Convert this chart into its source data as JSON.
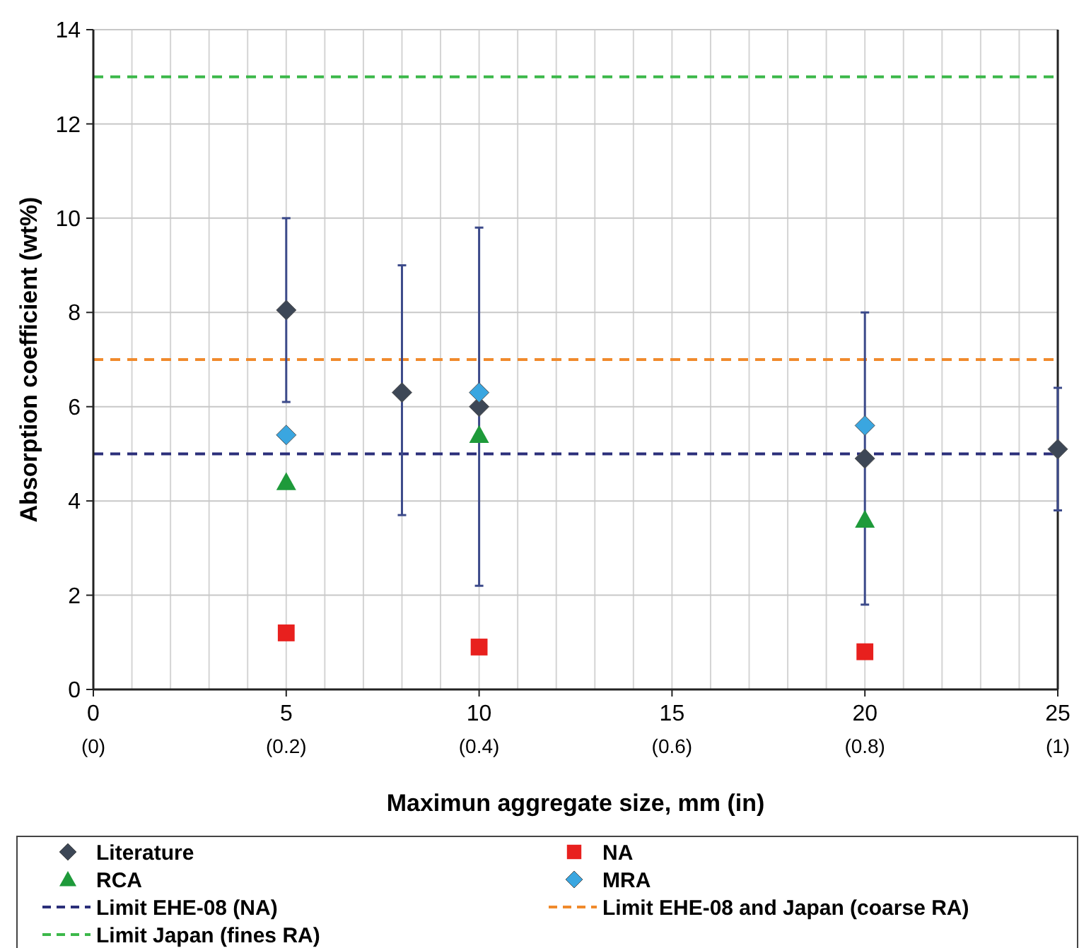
{
  "chart_data": {
    "type": "scatter",
    "xlabel": "Maximun aggregate size, mm (in)",
    "ylabel": "Absorption coefficient (wt%)",
    "xlim": [
      0,
      25
    ],
    "ylim": [
      0,
      14
    ],
    "x2lim": [
      0,
      1
    ],
    "x2ticks": [
      {
        "value": 0,
        "label": "(0)"
      },
      {
        "value": 0.2,
        "label": "(0.2)"
      },
      {
        "value": 0.4,
        "label": "(0.4)"
      },
      {
        "value": 0.6,
        "label": "(0.6)"
      },
      {
        "value": 0.8,
        "label": "(0.8)"
      },
      {
        "value": 1,
        "label": "(1)"
      }
    ],
    "xticks": [
      0,
      {
        "value": 1,
        "label": null
      },
      {
        "value": 2,
        "label": null
      },
      {
        "value": 3,
        "label": null
      },
      {
        "value": 4,
        "label": null
      },
      5,
      {
        "value": 6,
        "label": null
      },
      {
        "value": 7,
        "label": null
      },
      {
        "value": 8,
        "label": null
      },
      {
        "value": 9,
        "label": null
      },
      10,
      {
        "value": 11,
        "label": null
      },
      {
        "value": 12,
        "label": null
      },
      {
        "value": 13,
        "label": null
      },
      {
        "value": 14,
        "label": null
      },
      15,
      {
        "value": 16,
        "label": null
      },
      {
        "value": 17,
        "label": null
      },
      {
        "value": 18,
        "label": null
      },
      {
        "value": 19,
        "label": null
      },
      20,
      {
        "value": 21,
        "label": null
      },
      {
        "value": 22,
        "label": null
      },
      {
        "value": 23,
        "label": null
      },
      {
        "value": 24,
        "label": null
      },
      25
    ],
    "yticks": [
      0,
      2,
      4,
      6,
      8,
      10,
      12,
      14
    ],
    "grid": true,
    "legend": "bottom",
    "series": [
      {
        "name": "Literature",
        "color": "#3d4756",
        "marker": "diamond",
        "x": [
          5,
          8,
          10,
          20,
          25
        ],
        "values": [
          8.05,
          6.3,
          6.0,
          4.9,
          5.1
        ],
        "errors": [
          [
            6.1,
            10
          ],
          [
            3.7,
            9
          ],
          [
            2.2,
            9.8
          ],
          [
            1.8,
            8
          ],
          [
            3.8,
            6.4
          ]
        ]
      },
      {
        "name": "NA",
        "color": "#e8201e",
        "marker": "square",
        "x": [
          5,
          10,
          20
        ],
        "values": [
          1.2,
          0.9,
          0.8
        ]
      },
      {
        "name": "RCA",
        "color": "#1e9a3a",
        "marker": "triangle",
        "x": [
          5,
          10,
          20
        ],
        "values": [
          4.4,
          5.4,
          3.6
        ]
      },
      {
        "name": "MRA",
        "color": "#3aa6e0",
        "marker": "diamond",
        "x": [
          5,
          10,
          20
        ],
        "values": [
          5.4,
          6.3,
          5.6
        ]
      }
    ],
    "ref_lines": [
      {
        "axis": "y",
        "value": 5,
        "label": "Limit EHE-08 (NA)",
        "color": "#2b2f7a",
        "line_style": "dashed"
      },
      {
        "axis": "y",
        "value": 7,
        "label": "Limit EHE-08 and Japan (coarse RA)",
        "color": "#f08a2c",
        "line_style": "dashed"
      },
      {
        "axis": "y",
        "value": 13,
        "label": "Limit Japan (fines RA)",
        "color": "#3cb84a",
        "line_style": "dashed"
      }
    ]
  }
}
